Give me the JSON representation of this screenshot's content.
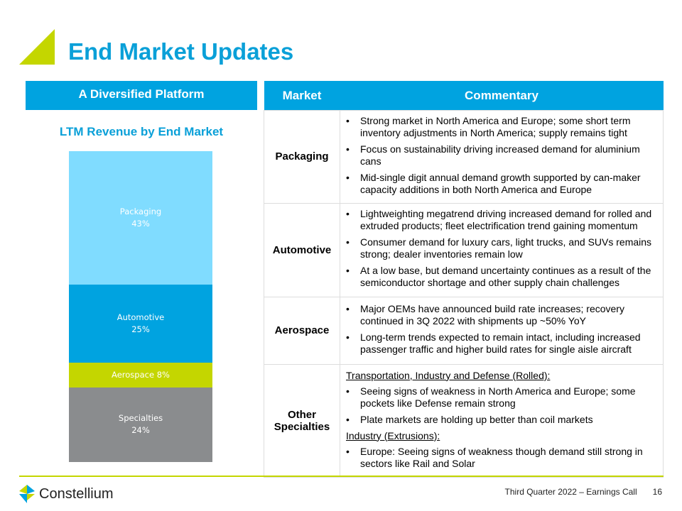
{
  "title": "End Market Updates",
  "left": {
    "header": "A Diversified Platform",
    "chart_title": "LTM Revenue by End Market"
  },
  "chart_data": {
    "type": "bar",
    "stacked": true,
    "title": "LTM Revenue by End Market",
    "series": [
      {
        "name": "Packaging",
        "value": 43,
        "label_line1": "Packaging",
        "label_line2": "43%",
        "color": "#80dcff"
      },
      {
        "name": "Automotive",
        "value": 25,
        "label_line1": "Automotive",
        "label_line2": "25%",
        "color": "#00a3e0"
      },
      {
        "name": "Aerospace",
        "value": 8,
        "label_line1": "Aerospace 8%",
        "label_line2": "",
        "color": "#c4d600"
      },
      {
        "name": "Specialties",
        "value": 24,
        "label_line1": "Specialties",
        "label_line2": "24%",
        "color": "#8a8c8e"
      }
    ]
  },
  "table": {
    "headers": [
      "Market",
      "Commentary"
    ],
    "rows": [
      {
        "market": "Packaging",
        "items": [
          {
            "type": "bullet",
            "text": "Strong market in North America and Europe; some short term inventory adjustments in North America; supply remains tight"
          },
          {
            "type": "bullet",
            "text": "Focus on sustainability driving increased demand for aluminium cans"
          },
          {
            "type": "bullet",
            "text": "Mid-single digit annual demand growth supported by can-maker capacity additions in both North America and Europe"
          }
        ]
      },
      {
        "market": "Automotive",
        "items": [
          {
            "type": "bullet",
            "text": "Lightweighting megatrend driving increased demand for rolled and extruded products; fleet electrification trend gaining momentum"
          },
          {
            "type": "bullet",
            "text": "Consumer demand for luxury cars, light trucks, and SUVs remains strong; dealer inventories remain low"
          },
          {
            "type": "bullet",
            "text": "At a low base, but demand uncertainty continues as a result of the semiconductor shortage and other supply chain challenges"
          }
        ]
      },
      {
        "market": "Aerospace",
        "items": [
          {
            "type": "bullet",
            "text": "Major OEMs have announced build rate increases; recovery continued in 3Q 2022 with shipments up ~50% YoY"
          },
          {
            "type": "bullet",
            "text": "Long-term trends expected to remain intact, including increased passenger traffic and higher build rates for single aisle aircraft"
          }
        ]
      },
      {
        "market": "Other Specialties",
        "items": [
          {
            "type": "sub",
            "text": "Transportation, Industry and Defense (Rolled):"
          },
          {
            "type": "bullet",
            "text": "Seeing signs of weakness in North America and Europe; some pockets like Defense remain strong"
          },
          {
            "type": "bullet",
            "text": "Plate markets are holding up better than coil markets"
          },
          {
            "type": "sub",
            "text": "Industry (Extrusions):"
          },
          {
            "type": "bullet",
            "text": "Europe: Seeing signs of weakness though demand still strong in sectors like Rail and Solar"
          }
        ]
      }
    ]
  },
  "footer": {
    "logo": "Constellium",
    "event": "Third Quarter 2022 – Earnings Call",
    "page": "16"
  },
  "colors": {
    "brand_blue": "#00a3e0",
    "brand_green": "#c4d600"
  }
}
